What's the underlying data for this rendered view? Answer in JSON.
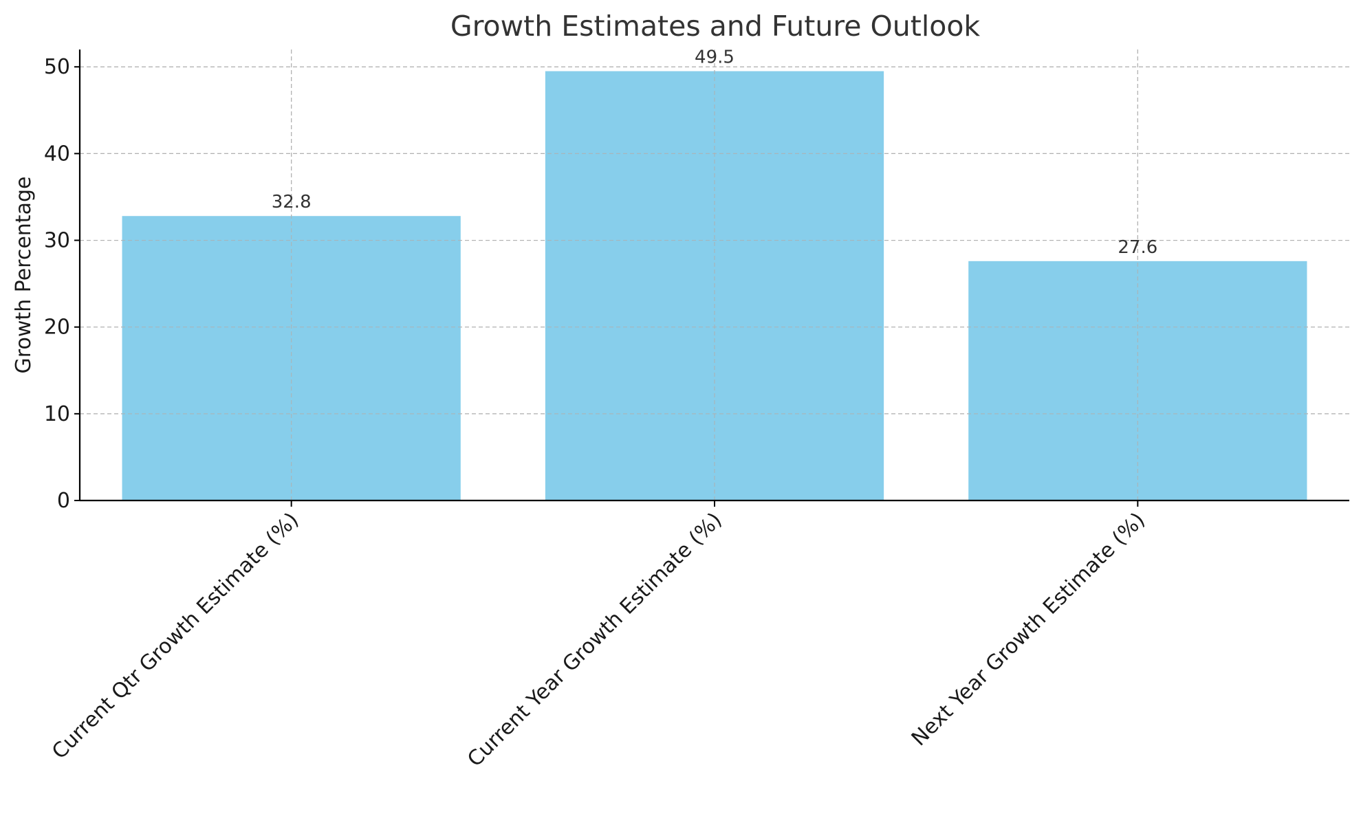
{
  "chart_data": {
    "type": "bar",
    "title": "Growth Estimates and Future Outlook",
    "xlabel": "",
    "ylabel": "Growth Percentage",
    "categories": [
      "Current Qtr Growth Estimate (%)",
      "Current Year Growth Estimate (%)",
      "Next Year Growth Estimate (%)"
    ],
    "values": [
      32.8,
      49.5,
      27.6
    ],
    "data_labels": [
      "32.8",
      "49.5",
      "27.6"
    ],
    "ylim": [
      0,
      52
    ],
    "yticks": [
      0,
      10,
      20,
      30,
      40,
      50
    ],
    "grid": true,
    "bar_color": "#87CEEB",
    "legend": "none",
    "xtick_rotation_deg": 45
  }
}
